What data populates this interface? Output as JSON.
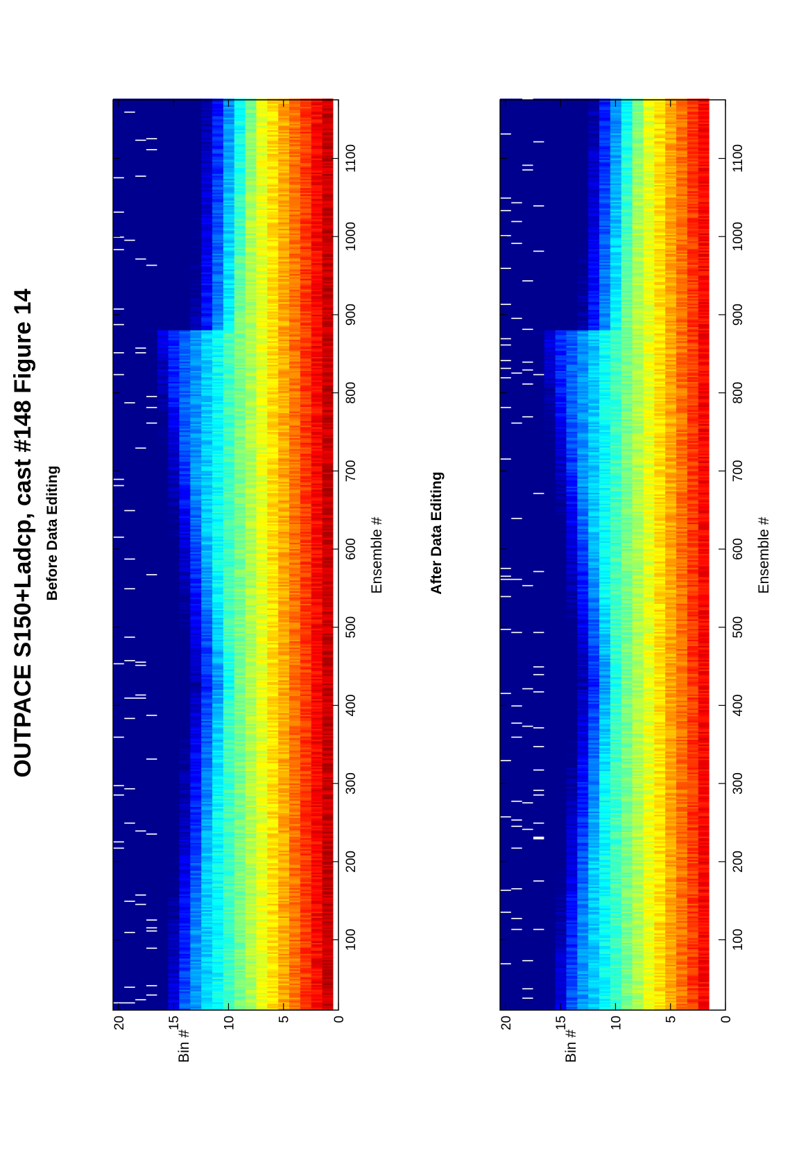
{
  "figure": {
    "title": "OUTPACE S150+Ladcp, cast #148  Figure 14",
    "orientation": "rotated-90-ccw"
  },
  "chart_data": [
    {
      "type": "heatmap",
      "title": "Before Data Editing",
      "xlabel": "Ensemble #",
      "ylabel": "Bin #",
      "xlim": [
        10,
        1175
      ],
      "ylim": [
        0,
        20.5
      ],
      "x_ticks": [
        100,
        200,
        300,
        400,
        500,
        600,
        700,
        800,
        900,
        1000,
        1100
      ],
      "y_ticks": [
        0,
        5,
        10,
        15,
        20
      ],
      "colormap": "jet",
      "colormap_stops": [
        "#00008f",
        "#0000ff",
        "#0080ff",
        "#00ffff",
        "#80ff80",
        "#ffff00",
        "#ff8000",
        "#ff0000",
        "#800000"
      ],
      "bins_with_data": [
        1,
        20
      ],
      "max_bin_value_top": true,
      "grid": false
    },
    {
      "type": "heatmap",
      "title": "After Data Editing",
      "xlabel": "Ensemble #",
      "ylabel": "Bin #",
      "xlim": [
        10,
        1175
      ],
      "ylim": [
        0,
        20.5
      ],
      "x_ticks": [
        100,
        200,
        300,
        400,
        500,
        600,
        700,
        800,
        900,
        1000,
        1100
      ],
      "y_ticks": [
        0,
        5,
        10,
        15,
        20
      ],
      "colormap": "jet",
      "colormap_stops": [
        "#00008f",
        "#0000ff",
        "#0080ff",
        "#00ffff",
        "#80ff80",
        "#ffff00",
        "#ff8000",
        "#ff0000",
        "#800000"
      ],
      "bins_with_data": [
        2,
        20
      ],
      "max_bin_value_top": true,
      "grid": false
    }
  ]
}
